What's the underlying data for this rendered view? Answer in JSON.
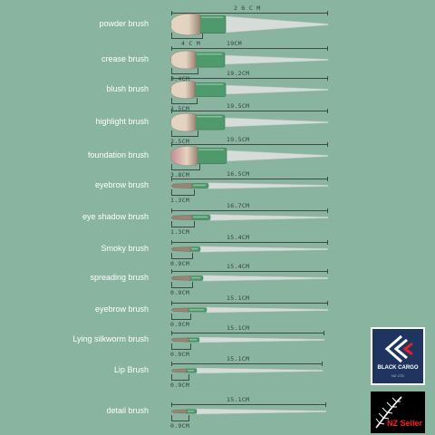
{
  "brushes": [
    {
      "name": "powder brush",
      "length": "2 6 C M",
      "head": "4 C M"
    },
    {
      "name": "crease brush",
      "length": "19CM",
      "head": "3.4CM"
    },
    {
      "name": "blush brush",
      "length": "19.2CM",
      "head": "3.5CM"
    },
    {
      "name": "highlight brush",
      "length": "19.5CM",
      "head": "3.5CM"
    },
    {
      "name": "foundation brush",
      "length": "19.5CM",
      "head": "3.8CM"
    },
    {
      "name": "eyebrow brush",
      "length": "16.5CM",
      "head": "1.3CM"
    },
    {
      "name": "eye shadow brush",
      "length": "16.7CM",
      "head": "1.3CM"
    },
    {
      "name": "Smoky brush",
      "length": "15.4CM",
      "head": "0.9CM"
    },
    {
      "name": "spreading brush",
      "length": "15.4CM",
      "head": "0.9CM"
    },
    {
      "name": "eyebrow brush",
      "length": "15.1CM",
      "head": "0.9CM"
    },
    {
      "name": "Lying silkworm brush",
      "length": "15.1CM",
      "head": "0.9CM"
    },
    {
      "name": "Lip Brush",
      "length": "15.1CM",
      "head": "0.9CM"
    },
    {
      "name": "detail brush",
      "length": "15.1CM",
      "head": "0.9CM"
    }
  ],
  "logos": {
    "black_cargo": {
      "brand": "BLACK CARGO",
      "tag": "NZ LTD",
      "icon": "black-cargo-logo-icon"
    },
    "nz_seller": {
      "text": "NZ Seller",
      "icon": "silver-fern-icon"
    }
  },
  "colors": {
    "background": "#88b4a0",
    "handle": "#d6ddd9",
    "ferrule": "#4f9a6c",
    "bristle_light": "#e4d3c1",
    "bristle_dark": "#9a8574",
    "label": "#ffffff",
    "dimension": "#33423d",
    "nz_red": "#ff1e1e"
  }
}
